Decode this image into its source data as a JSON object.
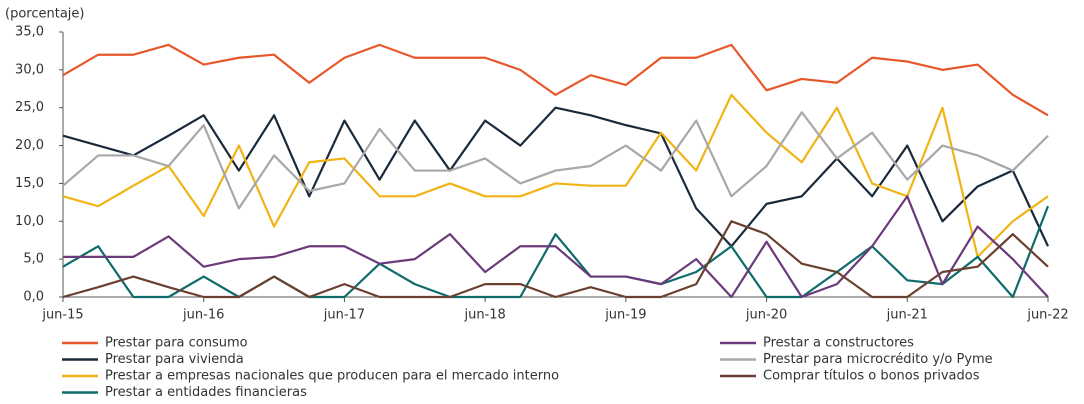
{
  "chart_data": {
    "type": "line",
    "y_label": "(porcentaje)",
    "categories": [
      "jun-15",
      null,
      null,
      null,
      "jun-16",
      null,
      null,
      null,
      "jun-17",
      null,
      null,
      null,
      "jun-18",
      null,
      null,
      null,
      "jun-19",
      null,
      null,
      null,
      "jun-20",
      null,
      null,
      null,
      "jun-21",
      null,
      null,
      null,
      "jun-22"
    ],
    "ylim": [
      0,
      35
    ],
    "yticks": [
      {
        "value": 0,
        "label": "0,0"
      },
      {
        "value": 5,
        "label": "5,0"
      },
      {
        "value": 10,
        "label": "10,0"
      },
      {
        "value": 15,
        "label": "15,0"
      },
      {
        "value": 20,
        "label": "20,0"
      },
      {
        "value": 25,
        "label": "25,0"
      },
      {
        "value": 30,
        "label": "30,0"
      },
      {
        "value": 35,
        "label": "35,0"
      }
    ],
    "series": [
      {
        "name": "Prestar para consumo",
        "color": "#e8572a",
        "values": [
          29.3,
          32,
          32,
          33.3,
          30.7,
          31.6,
          32,
          28.3,
          31.6,
          33.3,
          31.6,
          31.6,
          31.6,
          30,
          26.7,
          29.3,
          28,
          31.6,
          31.6,
          33.3,
          27.3,
          28.8,
          28.3,
          31.6,
          31.1,
          30,
          30.7,
          26.7,
          24
        ]
      },
      {
        "name": "Prestar para vivienda",
        "color": "#1b2a3a",
        "values": [
          21.3,
          20,
          18.7,
          21.3,
          24,
          16.7,
          24,
          13.3,
          23.3,
          15.5,
          23.3,
          16.7,
          23.3,
          20,
          25,
          24,
          22.7,
          21.6,
          11.7,
          6.7,
          12.3,
          13.3,
          18.3,
          13.3,
          20,
          10,
          14.6,
          16.7,
          6.7
        ]
      },
      {
        "name": "Prestar a empresas nacionales que producen para el mercado interno",
        "color": "#f0b416",
        "values": [
          13.3,
          12,
          14.7,
          17.3,
          10.7,
          20,
          9.3,
          17.8,
          18.3,
          13.3,
          13.3,
          15,
          13.3,
          13.3,
          15,
          14.7,
          14.7,
          21.7,
          16.7,
          26.7,
          21.7,
          17.8,
          25,
          15,
          13.3,
          25,
          5.3,
          10,
          13.3
        ]
      },
      {
        "name": "Prestar a entidades financieras",
        "color": "#0e6b6b",
        "values": [
          4,
          6.7,
          0,
          0,
          2.7,
          0,
          2.7,
          0,
          0,
          4.4,
          1.7,
          0,
          0,
          0,
          8.3,
          2.7,
          2.7,
          1.7,
          3.3,
          6.7,
          0,
          0,
          3.3,
          6.7,
          2.2,
          1.7,
          5.3,
          0,
          12
        ]
      },
      {
        "name": "Prestar a constructores",
        "color": "#6b3a7a",
        "values": [
          5.3,
          5.3,
          5.3,
          8,
          4,
          5,
          5.3,
          6.7,
          6.7,
          4.4,
          5,
          8.3,
          3.3,
          6.7,
          6.7,
          2.7,
          2.7,
          1.7,
          5,
          0,
          7.3,
          0,
          1.7,
          6.7,
          13.3,
          1.7,
          9.3,
          5,
          0
        ]
      },
      {
        "name": "Prestar para microcrédito y/o Pyme",
        "color": "#a8a8a8",
        "values": [
          14.7,
          18.7,
          18.7,
          17.3,
          22.7,
          11.7,
          18.7,
          14,
          15,
          22.2,
          16.7,
          16.7,
          18.3,
          15,
          16.7,
          17.3,
          20,
          16.7,
          23.3,
          13.3,
          17.3,
          24.4,
          18.3,
          21.7,
          15.5,
          20,
          18.7,
          16.7,
          21.3
        ]
      },
      {
        "name": "Comprar títulos o bonos privados",
        "color": "#6b4030",
        "values": [
          0,
          1.3,
          2.7,
          1.3,
          0,
          0,
          2.7,
          0,
          1.7,
          0,
          0,
          0,
          1.7,
          1.7,
          0,
          1.3,
          0,
          0,
          1.7,
          10,
          8.3,
          4.4,
          3.3,
          0,
          0,
          3.3,
          4,
          8.3,
          4
        ]
      }
    ]
  }
}
